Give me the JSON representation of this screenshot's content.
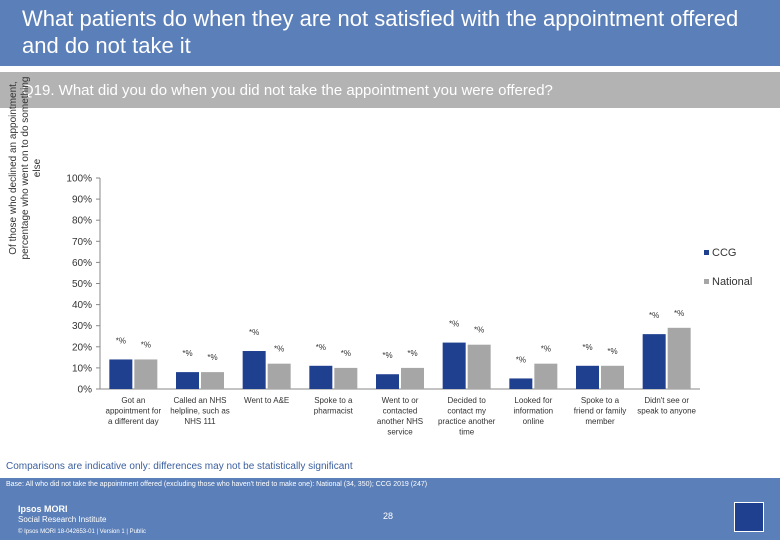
{
  "header": {
    "title": "What patients do when they are not satisfied with the appointment offered and do not take it",
    "question": "Q19. What did you do when you did not take the appointment you were offered?"
  },
  "chart_data": {
    "type": "bar",
    "ylabel": "Of those who declined an appointment, percentage who went on to do something else",
    "ylim": [
      0,
      100
    ],
    "yticks": [
      "0%",
      "10%",
      "20%",
      "30%",
      "40%",
      "50%",
      "60%",
      "70%",
      "80%",
      "90%",
      "100%"
    ],
    "categories": [
      "Got an appointment for a different day",
      "Called an NHS helpline, such as NHS 111",
      "Went to A&E",
      "Spoke to a pharmacist",
      "Went to or contacted another NHS service",
      "Decided to contact my practice another time",
      "Looked for information online",
      "Spoke to a friend or family member",
      "Didn't see or speak to anyone"
    ],
    "category_lines": [
      [
        "Got an",
        "appointment for",
        "a different day"
      ],
      [
        "Called an NHS",
        "helpline, such as",
        "NHS 111"
      ],
      [
        "Went to A&E"
      ],
      [
        "Spoke to a",
        "pharmacist"
      ],
      [
        "Went to or",
        "contacted",
        "another NHS",
        "service"
      ],
      [
        "Decided to",
        "contact my",
        "practice another",
        "time"
      ],
      [
        "Looked for",
        "information",
        "online"
      ],
      [
        "Spoke to a",
        "friend or family",
        "member"
      ],
      [
        "Didn't see or",
        "speak to anyone"
      ]
    ],
    "series": [
      {
        "name": "CCG",
        "color": "#1f3f8f",
        "values": [
          14,
          8,
          18,
          11,
          7,
          22,
          5,
          11,
          26
        ],
        "labels": [
          "*%",
          "*%",
          "*%",
          "*%",
          "*%",
          "*%",
          "*%",
          "*%",
          "*%"
        ]
      },
      {
        "name": "National",
        "color": "#a6a6a6",
        "values": [
          14,
          8,
          12,
          10,
          10,
          21,
          12,
          11,
          29
        ],
        "labels": [
          "*%",
          "*%",
          "*%",
          "*%",
          "*%",
          "*%",
          "*%",
          "*%",
          "*%"
        ]
      }
    ],
    "legend_position": "right",
    "grid": false
  },
  "footer": {
    "note": "Comparisons are indicative only: differences may not be statistically significant",
    "base": "Base: All who did not take the appointment offered (excluding those who haven't tried to make one): National (34, 350); CCG 2019 (247)",
    "logo_main": "Ipsos MORI",
    "logo_sub": "Social Research Institute",
    "copyright": "© Ipsos MORI     18-042653-01 | Version 1 | Public",
    "page_number": "28"
  }
}
